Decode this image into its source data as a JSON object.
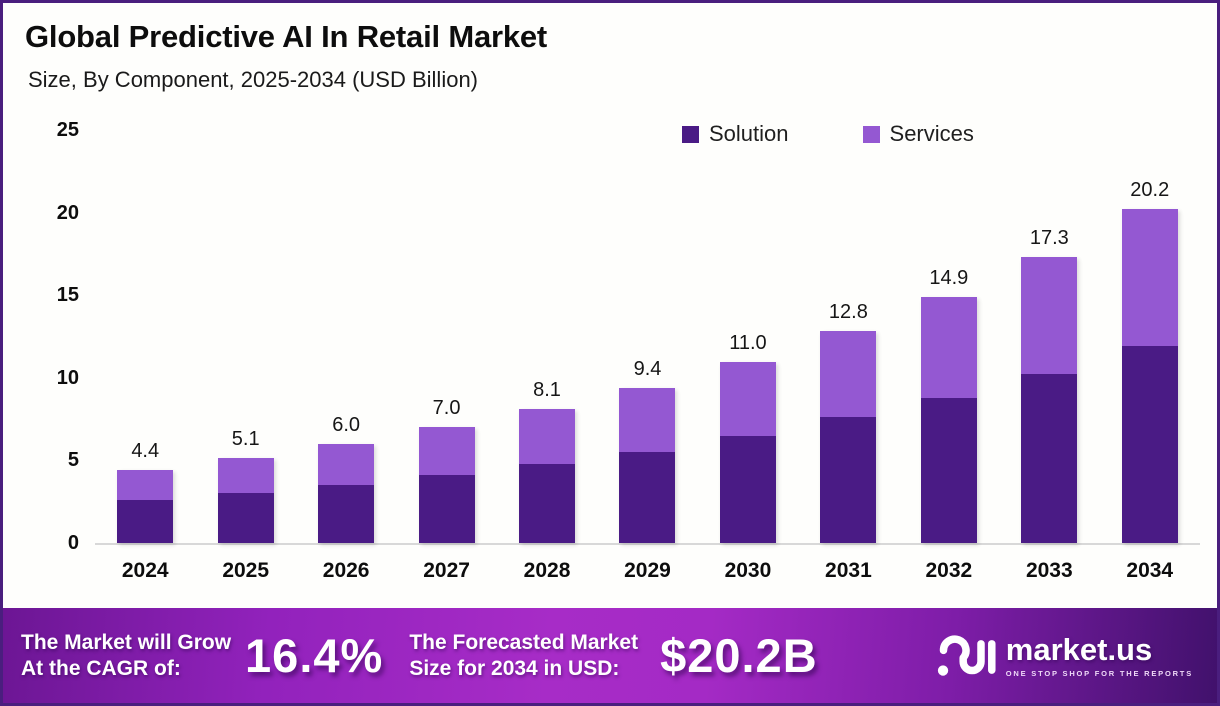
{
  "header": {
    "title": "Global Predictive AI In Retail Market",
    "subtitle": "Size, By Component, 2025-2034 (USD Billion)"
  },
  "chart_data": {
    "type": "bar",
    "stacked": true,
    "title": "Global Predictive AI In Retail Market Size, By Component, 2025-2034 (USD Billion)",
    "categories": [
      "2024",
      "2025",
      "2026",
      "2027",
      "2028",
      "2029",
      "2030",
      "2031",
      "2032",
      "2033",
      "2034"
    ],
    "series": [
      {
        "name": "Solution",
        "color": "#4A1B85",
        "values": [
          2.6,
          3.0,
          3.5,
          4.1,
          4.8,
          5.5,
          6.5,
          7.6,
          8.8,
          10.2,
          11.9
        ]
      },
      {
        "name": "Services",
        "color": "#9458D2",
        "values": [
          1.8,
          2.1,
          2.5,
          2.9,
          3.3,
          3.9,
          4.5,
          5.2,
          6.1,
          7.1,
          8.3
        ]
      }
    ],
    "totals": [
      "4.4",
      "5.1",
      "6.0",
      "7.0",
      "8.1",
      "9.4",
      "11.0",
      "12.8",
      "14.9",
      "17.3",
      "20.2"
    ],
    "yticks": [
      0,
      5,
      10,
      15,
      20,
      25
    ],
    "ylim": [
      0,
      25
    ],
    "grid": false,
    "legend_position": "top-right"
  },
  "banner": {
    "cagr_label_line1": "The Market will Grow",
    "cagr_label_line2": "At the CAGR of:",
    "cagr_value": "16.4%",
    "forecast_label_line1": "The Forecasted Market",
    "forecast_label_line2": "Size for 2034 in USD:",
    "forecast_value": "$20.2B",
    "logo_text": "market.us",
    "logo_tagline": "ONE STOP SHOP FOR THE REPORTS"
  },
  "colors": {
    "frame_border": "#4A1E7E",
    "background": "#FEFEFC",
    "axis_line": "#D8D8D8",
    "banner_gradient_left": "#6C1694",
    "banner_gradient_center": "#A72CC7",
    "banner_gradient_right": "#41116C"
  }
}
